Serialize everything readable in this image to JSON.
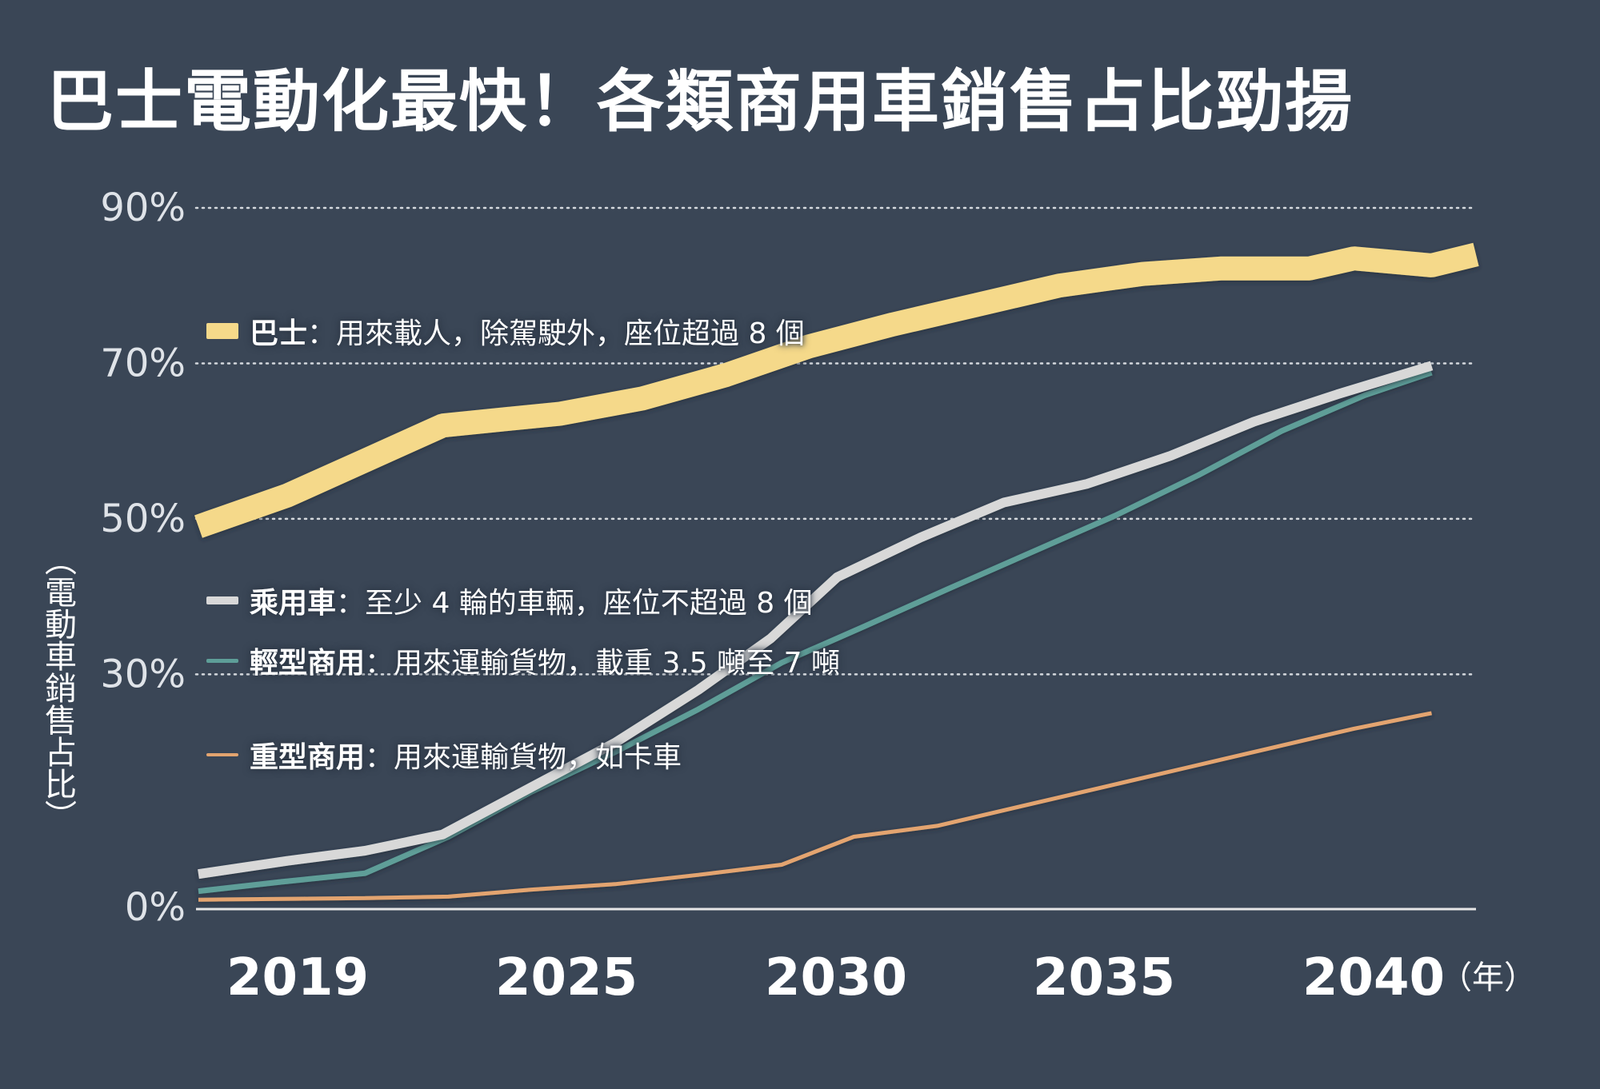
{
  "chart_data": {
    "type": "line",
    "title": "巴士電動化最快！各類商用車銷售占比勁揚",
    "ylabel": "（電動車銷售占比）",
    "xlabel": "",
    "x_unit": "（年）",
    "x_ticks": [
      "2019",
      "2025",
      "2030",
      "2035",
      "2040"
    ],
    "xlim": [
      2019,
      2042
    ],
    "y_ticks": [
      "90%",
      "70%",
      "50%",
      "30%",
      "0%"
    ],
    "ylim": [
      0,
      90
    ],
    "series": [
      {
        "name": "巴士",
        "description": "：用來載人，除駕駛外，座位超過 8 個",
        "color": "#f5d98a",
        "x": [
          2019,
          2020.6,
          2022,
          2023.4,
          2024.5,
          2025.5,
          2027,
          2028.5,
          2030,
          2031.5,
          2033,
          2034.5,
          2036,
          2037.4,
          2039,
          2039.8,
          2041.2,
          2042
        ],
        "values": [
          49,
          53,
          57.5,
          62,
          62.8,
          63.5,
          65.5,
          68.5,
          72.2,
          75,
          77.5,
          80,
          81.5,
          82.2,
          82.2,
          83.5,
          82.6,
          84
        ]
      },
      {
        "name": "乘用車",
        "description": "：至少 4 輪的車輛，座位不超過 8 個",
        "color": "#d8d8d8",
        "x": [
          2019,
          2020.6,
          2022,
          2023.4,
          2025,
          2026.5,
          2028,
          2029.3,
          2030.5,
          2032,
          2033.5,
          2035,
          2036.5,
          2038,
          2039.5,
          2041.2
        ],
        "values": [
          4.3,
          6,
          7.3,
          9.4,
          15.5,
          21.2,
          28,
          34.6,
          42.5,
          47.6,
          52.1,
          54.5,
          58.1,
          62.5,
          66,
          69.7
        ]
      },
      {
        "name": "輕型商用",
        "description": "：用來運輸貨物，載重 3.5 噸至 7 噸",
        "color": "#5e9e98",
        "x": [
          2019,
          2020.5,
          2022,
          2023.5,
          2025,
          2026.5,
          2028,
          2029.5,
          2031,
          2032.5,
          2034,
          2035.5,
          2037,
          2038.5,
          2040,
          2041.2
        ],
        "values": [
          2.1,
          3.3,
          4.4,
          9.1,
          14.9,
          20,
          25.5,
          31.5,
          36.2,
          41,
          45.7,
          50.4,
          55.6,
          61.3,
          65.9,
          68.8
        ]
      },
      {
        "name": "重型商用",
        "description": "：用來運輸貨物，如卡車",
        "color": "#e3a46f",
        "x": [
          2019,
          2020.5,
          2022,
          2023.5,
          2025,
          2026.5,
          2028,
          2029.5,
          2030.8,
          2032.3,
          2033.8,
          2035.3,
          2036.8,
          2038.3,
          2039.8,
          2041.2
        ],
        "values": [
          1,
          1.1,
          1.2,
          1.4,
          2.3,
          3,
          4.2,
          5.5,
          9.1,
          10.5,
          13,
          15.5,
          18,
          20.5,
          23,
          25
        ]
      }
    ]
  }
}
